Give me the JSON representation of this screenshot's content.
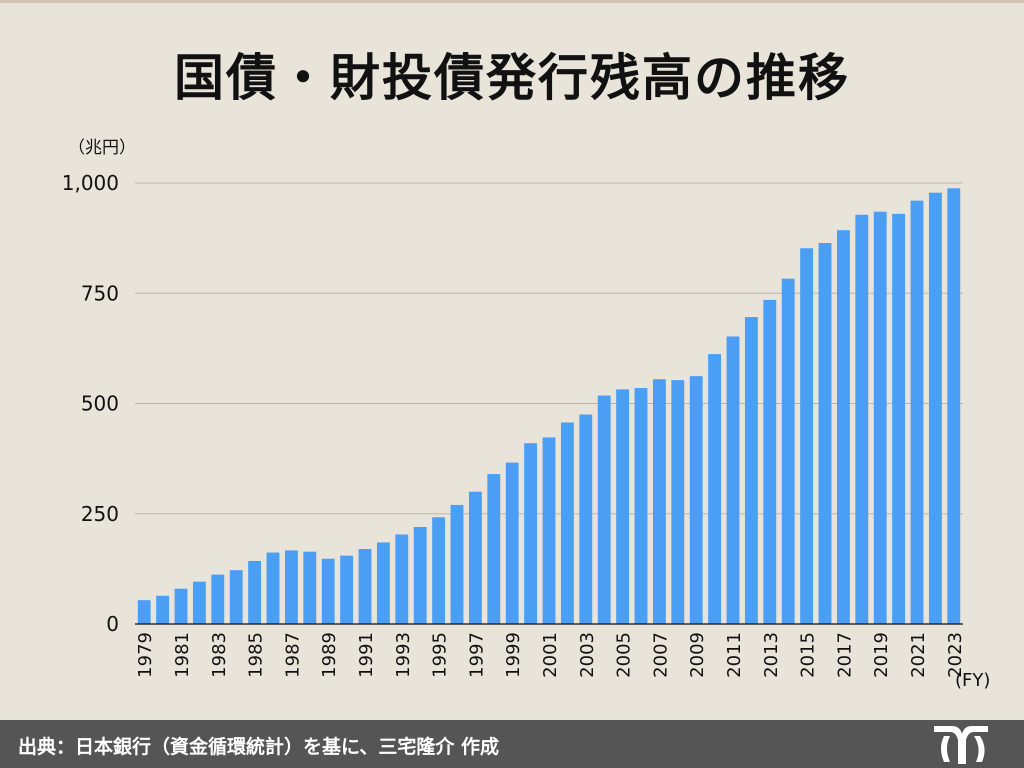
{
  "page": {
    "title": "国債・財投債発行残高の推移",
    "footer_text": "出典：日本銀行（資金循環統計）を基に、三宅隆介 作成",
    "logo_icon": "stylized-m-logo-icon"
  },
  "colors": {
    "background": "#e9e4da",
    "bar": "#4a9ff5",
    "grid": "#bdb6aa",
    "footer": "#555555"
  },
  "chart_data": {
    "type": "bar",
    "title": "国債・財投債発行残高の推移",
    "ylabel": "（兆円）",
    "xlabel": "(FY)",
    "ylim": [
      0,
      1000
    ],
    "yticks": [
      0,
      250,
      500,
      750,
      1000
    ],
    "ytick_labels": [
      "0",
      "250",
      "500",
      "750",
      "1,000"
    ],
    "grid": true,
    "categories": [
      "1979",
      "1980",
      "1981",
      "1982",
      "1983",
      "1984",
      "1985",
      "1986",
      "1987",
      "1988",
      "1989",
      "1990",
      "1991",
      "1992",
      "1993",
      "1994",
      "1995",
      "1996",
      "1997",
      "1998",
      "1999",
      "2000",
      "2001",
      "2002",
      "2003",
      "2004",
      "2005",
      "2006",
      "2007",
      "2008",
      "2009",
      "2010",
      "2011",
      "2012",
      "2013",
      "2014",
      "2015",
      "2016",
      "2017",
      "2018",
      "2019",
      "2020",
      "2021",
      "2022",
      "2023"
    ],
    "xtick_labels": [
      "1979",
      "",
      "1981",
      "",
      "1983",
      "",
      "1985",
      "",
      "1987",
      "",
      "1989",
      "",
      "1991",
      "",
      "1993",
      "",
      "1995",
      "",
      "1997",
      "",
      "1999",
      "",
      "2001",
      "",
      "2003",
      "",
      "2005",
      "",
      "2007",
      "",
      "2009",
      "",
      "2011",
      "",
      "2013",
      "",
      "2015",
      "",
      "2017",
      "",
      "2019",
      "",
      "2021",
      "",
      "2023"
    ],
    "values": [
      54,
      64,
      80,
      96,
      112,
      122,
      143,
      162,
      167,
      164,
      148,
      155,
      170,
      185,
      203,
      220,
      242,
      270,
      300,
      340,
      366,
      410,
      423,
      457,
      475,
      518,
      532,
      535,
      555,
      553,
      562,
      612,
      652,
      696,
      735,
      783,
      852,
      864,
      893,
      928,
      935,
      930,
      960,
      978,
      988
    ]
  }
}
